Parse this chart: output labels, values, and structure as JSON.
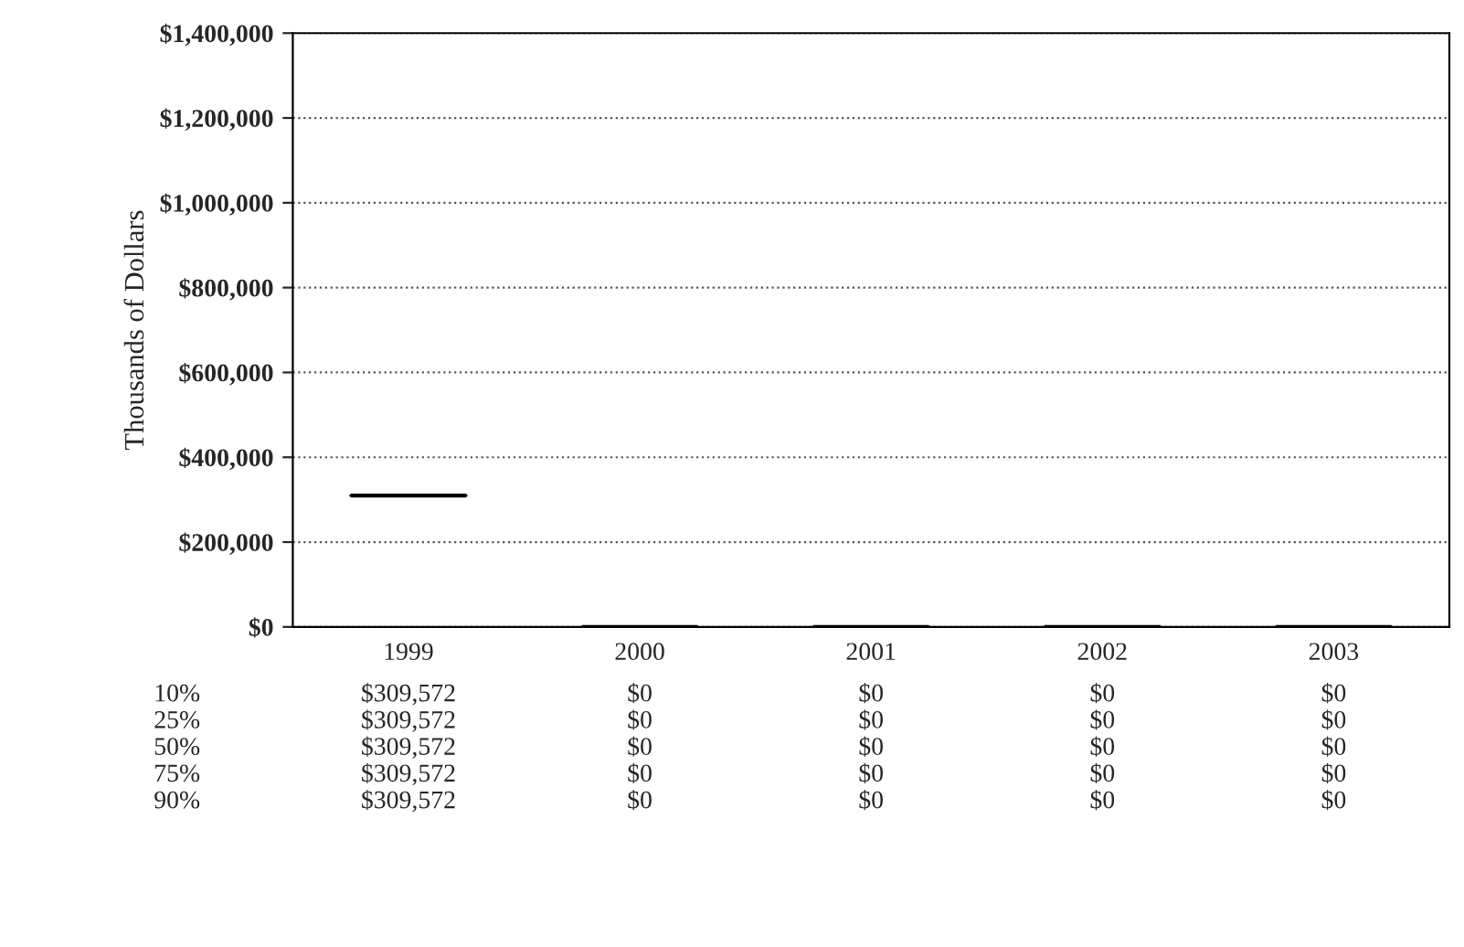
{
  "chart_data": {
    "type": "box",
    "ylabel": "Thousands of Dollars",
    "categories": [
      "1999",
      "2000",
      "2001",
      "2002",
      "2003"
    ],
    "boxes": [
      {
        "low": 309572,
        "q1": 309572,
        "median": 309572,
        "q3": 309572,
        "high": 309572
      },
      {
        "low": 0,
        "q1": 0,
        "median": 0,
        "q3": 0,
        "high": 0
      },
      {
        "low": 0,
        "q1": 0,
        "median": 0,
        "q3": 0,
        "high": 0
      },
      {
        "low": 0,
        "q1": 0,
        "median": 0,
        "q3": 0,
        "high": 0
      },
      {
        "low": 0,
        "q1": 0,
        "median": 0,
        "q3": 0,
        "high": 0
      }
    ],
    "value_labels": [
      [
        "$309,572",
        "$309,572",
        "$309,572",
        "$309,572",
        "$309,572"
      ],
      [
        "$0",
        "$0",
        "$0",
        "$0",
        "$0"
      ],
      [
        "$0",
        "$0",
        "$0",
        "$0",
        "$0"
      ],
      [
        "$0",
        "$0",
        "$0",
        "$0",
        "$0"
      ],
      [
        "$0",
        "$0",
        "$0",
        "$0",
        "$0"
      ]
    ],
    "annotations": [
      "10%",
      "25%",
      "50%",
      "75%",
      "90%"
    ],
    "ylim": [
      0,
      1400000
    ],
    "yticks": [
      {
        "value": 0,
        "label": "$0"
      },
      {
        "value": 200000,
        "label": "$200,000"
      },
      {
        "value": 400000,
        "label": "$400,000"
      },
      {
        "value": 600000,
        "label": "$600,000"
      },
      {
        "value": 800000,
        "label": "$800,000"
      },
      {
        "value": 1000000,
        "label": "$1,000,000"
      },
      {
        "value": 1200000,
        "label": "$1,200,000"
      },
      {
        "value": 1400000,
        "label": "$1,400,000"
      }
    ],
    "grid": "y",
    "color": "#000000"
  }
}
